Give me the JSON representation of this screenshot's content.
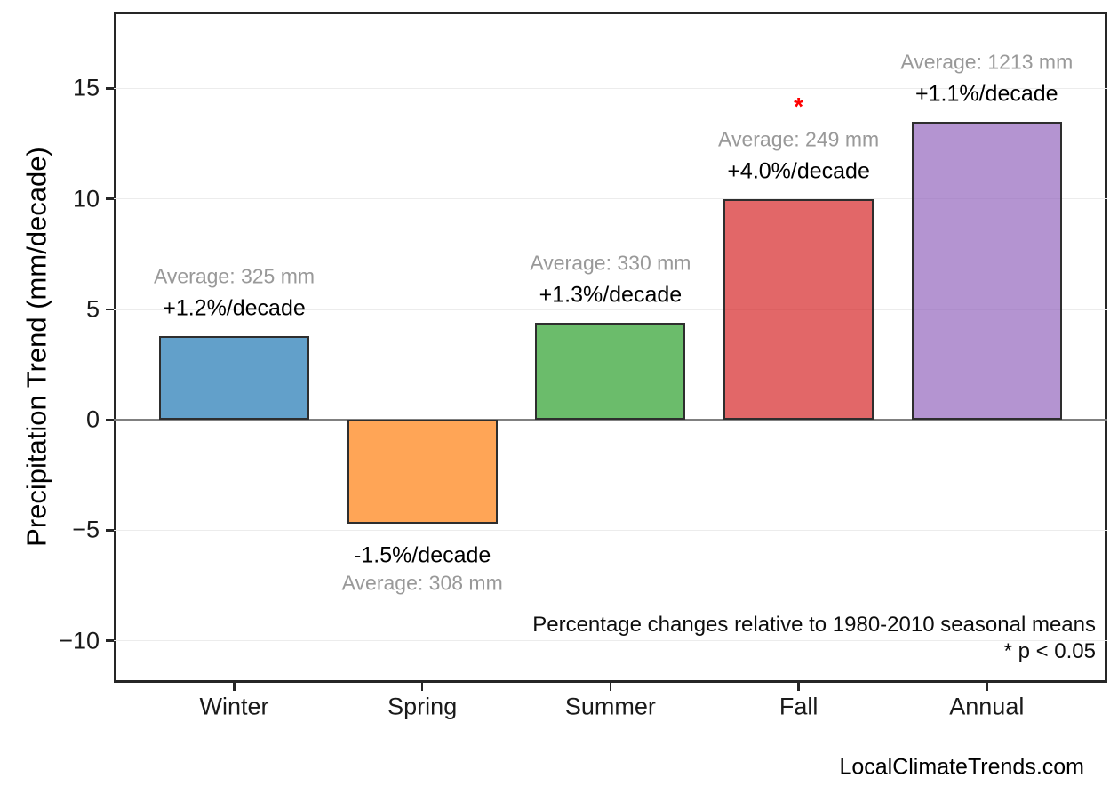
{
  "chart_data": {
    "type": "bar",
    "title": "",
    "xlabel": "",
    "ylabel": "Precipitation Trend (mm/decade)",
    "categories": [
      "Winter",
      "Spring",
      "Summer",
      "Fall",
      "Annual"
    ],
    "values": [
      3.8,
      -4.7,
      4.4,
      10.0,
      13.5
    ],
    "bars": [
      {
        "category": "Winter",
        "value": 3.8,
        "average_label": "Average: 325 mm",
        "trend_label": "+1.2%/decade",
        "color": "#1f77b4",
        "significant": false
      },
      {
        "category": "Spring",
        "value": -4.7,
        "average_label": "Average: 308 mm",
        "trend_label": "-1.5%/decade",
        "color": "#ff7f0e",
        "significant": false
      },
      {
        "category": "Summer",
        "value": 4.4,
        "average_label": "Average: 330 mm",
        "trend_label": "+1.3%/decade",
        "color": "#2ca02c",
        "significant": false
      },
      {
        "category": "Fall",
        "value": 10.0,
        "average_label": "Average: 249 mm",
        "trend_label": "+4.0%/decade",
        "color": "#d62728",
        "significant": true
      },
      {
        "category": "Annual",
        "value": 13.5,
        "average_label": "Average: 1213 mm",
        "trend_label": "+1.1%/decade",
        "color": "#9467bd",
        "significant": false
      }
    ],
    "bar_alpha": 0.7,
    "y_ticks": [
      -10,
      -5,
      0,
      5,
      10,
      15
    ],
    "y_tick_labels": [
      "−10",
      "−5",
      "0",
      "5",
      "10",
      "15"
    ],
    "ylim": [
      -11.9,
      18.5
    ],
    "grid": true,
    "legend": null,
    "annotations": {
      "significance_marker": "*",
      "significance_color": "#ff0000",
      "note_line1": "Percentage changes relative to 1980-2010 seasonal means",
      "note_line2": "* p < 0.05"
    },
    "watermark": "LocalClimateTrends.com",
    "colors": {
      "grid": "#ececec",
      "zero_line": "#808080",
      "spine": "#262626",
      "bar_edge": "#2e2e2e",
      "average_text": "#999999",
      "trend_text": "#000000"
    }
  }
}
